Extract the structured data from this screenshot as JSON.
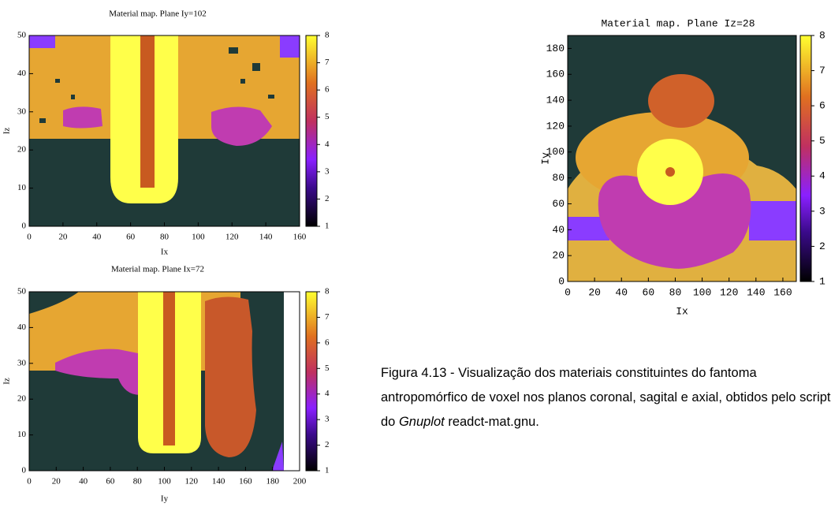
{
  "figures": [
    {
      "title": "Material map. Plane Iy=102",
      "xlabel": "Ix",
      "ylabel": "Iz",
      "xlim": [
        0,
        160
      ],
      "ylim": [
        0,
        50
      ],
      "xticks": [
        0,
        20,
        40,
        60,
        80,
        100,
        120,
        140,
        160
      ],
      "yticks": [
        0,
        10,
        20,
        30,
        40,
        50
      ],
      "clim": [
        1,
        8
      ],
      "cticks": [
        1,
        2,
        3,
        4,
        5,
        6,
        7,
        8
      ]
    },
    {
      "title": "Material map. Plane Ix=72",
      "xlabel": "Iy",
      "ylabel": "Iz",
      "xlim": [
        0,
        200
      ],
      "ylim": [
        0,
        50
      ],
      "xticks": [
        0,
        20,
        40,
        60,
        80,
        100,
        120,
        140,
        160,
        180,
        200
      ],
      "yticks": [
        0,
        10,
        20,
        30,
        40,
        50
      ],
      "clim": [
        1,
        8
      ],
      "cticks": [
        1,
        2,
        3,
        4,
        5,
        6,
        7,
        8
      ]
    },
    {
      "title": "Material map. Plane Iz=28",
      "xlabel": "Ix",
      "ylabel": "Iy",
      "xlim": [
        0,
        170
      ],
      "ylim": [
        0,
        190
      ],
      "xticks": [
        0,
        20,
        40,
        60,
        80,
        100,
        120,
        140,
        160
      ],
      "yticks": [
        0,
        20,
        40,
        60,
        80,
        100,
        120,
        140,
        160,
        180
      ],
      "clim": [
        1,
        8
      ],
      "cticks": [
        1,
        2,
        3,
        4,
        5,
        6,
        7,
        8
      ]
    }
  ],
  "caption": {
    "text": "Figura 4.13 - Visualização dos materiais constituintes do fantoma antropomórfico de voxel nos planos coronal, sagital e axial, obtidos pelo script do ",
    "italic": "Gnuplot",
    "tail": " readct-mat.gnu."
  }
}
